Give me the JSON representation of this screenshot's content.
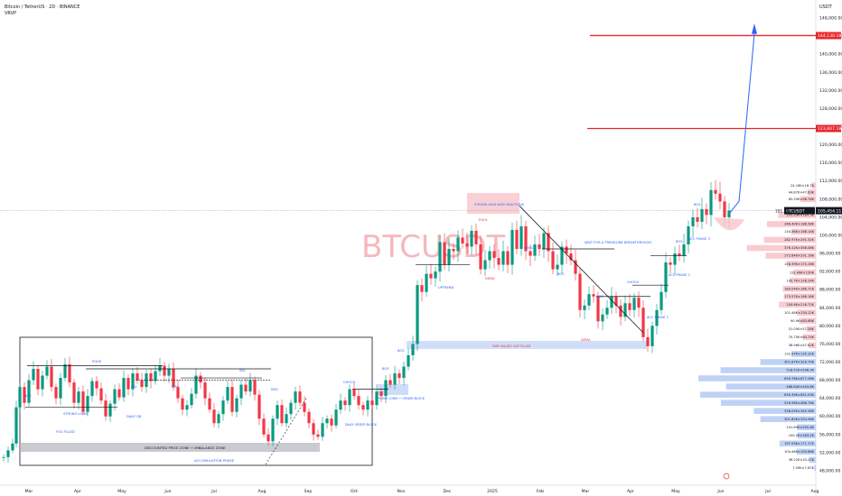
{
  "header": {
    "symbol_line": "Bitcoin / TetherUS · 2D · BINANCE",
    "volume_label": "VRVP"
  },
  "price_axis": {
    "currency": "USDT",
    "ticks": [
      "148,000.00",
      "144,000.00",
      "140,000.00",
      "136,000.00",
      "132,000.00",
      "128,000.00",
      "124,000.00",
      "120,000.00",
      "116,000.00",
      "112,000.00",
      "108,000.00",
      "104,000.00",
      "100,000.00",
      "96,000.00",
      "92,000.00",
      "88,000.00",
      "84,000.00",
      "80,000.00",
      "76,000.00",
      "72,000.00",
      "68,000.00",
      "64,000.00",
      "60,000.00",
      "56,000.00",
      "52,000.00",
      "48,000.00"
    ],
    "tag_target_1": "144,130.18",
    "tag_target_2": "123,607.18",
    "tag_symbol": "BTCUSDT",
    "tag_price": "105,454.11",
    "tag_partial": "101.30"
  },
  "time_axis": {
    "labels": [
      "Mar",
      "Apr",
      "May",
      "Jun",
      "Jul",
      "Aug",
      "Sep",
      "Oct",
      "Nov",
      "Dec",
      "2025",
      "Feb",
      "Mar",
      "Apr",
      "May",
      "Jun",
      "Jul",
      "Aug"
    ]
  },
  "watermark": "BTCUSDT",
  "volume_profile_labels": [
    "24.16K×18.7K",
    "44.87K×47.63K",
    "85.29K×56.76K",
    "205.33K×189.3K",
    "266.40K×188.58K",
    "134.36K×168.14K",
    "282.97K×291.52K",
    "376.12K×358.08K",
    "272.84K×291.16K",
    "158.39K×170.16K",
    "122.49K×150K",
    "142.7K×128.24K",
    "180.04K×166.71K",
    "173.57K×168.18K",
    "200.6K×216.72K",
    "101.48K×134.12K",
    "90.9K×83.68K",
    "51.05K×57.28K",
    "70.75K×64.74K",
    "38.96K×47.82K",
    "132.97K×135.31K",
    "301.87K×329.79K",
    "518.51K×506.9K",
    "639.76K×677.08K",
    "488.84K×443.8K",
    "630.39K×651.03K",
    "516.96K×486.78K",
    "338.05K×349.36K",
    "301.82K×334.96K",
    "101.69K×205.8K",
    "100.2K×183.2K",
    "197.93K×171.27K",
    "104.48K×100.66K",
    "36.22K×33.22K",
    "7.59K×7.87K"
  ],
  "annotations": {
    "strong_high": "STRONG HIGH WICK REACTIONS",
    "wait_trendline": "WAIT FOR A TRENDLINE BREAKTHROUGH",
    "fair_value": "FAIR VALUED GAP FILLED",
    "discount_zone": "DISCOUNTED PRICE ZONE + IMBALANCE ZONE",
    "accumulation": "ACCUMULATION PHASE",
    "fvg_filled": "FVG FILLED",
    "strong_lows": "STRONG LOWS",
    "daily_ob": "DAILY OB",
    "daily_order_block": "DAILY ORDER BLOCK",
    "strong_lows_ob": "STRONG LOWS + ORDER BLOCK",
    "uptrend": "UPTREND",
    "choch": "CHOCH",
    "acc_phase_1": "ACC PHASE 1",
    "acc_phase_2": "ACC PHASE 2",
    "acc_phase_3": "ACC PHASE 3",
    "bos": "BOS",
    "bsl": "BSL",
    "ssl": "SSL",
    "eqh": "EQHS",
    "mss": "MSS",
    "eqhl": "EQHL",
    "dema": "DEMA"
  },
  "colors": {
    "bull": "#089981",
    "bear": "#f23645",
    "target_line": "#e8262e",
    "projection": "#2962ff",
    "zone_blue": "#c8d8f8",
    "zone_red": "#f7c5ca",
    "label_blue": "#2962ff",
    "label_red": "#e53935",
    "vp_red": "#f7c6cc",
    "vp_blue": "#b8cdf5"
  },
  "chart_data": {
    "type": "candlestick",
    "timeframe": "2D",
    "y_range": [
      46000,
      150000
    ],
    "targets": [
      144130.18,
      123607.18
    ],
    "last_price": 105454.11,
    "close_path": [
      [
        0,
        51000
      ],
      [
        5,
        52500
      ],
      [
        10,
        54000
      ],
      [
        14,
        62000
      ],
      [
        18,
        66500
      ],
      [
        23,
        63000
      ],
      [
        28,
        68000
      ],
      [
        33,
        70500
      ],
      [
        38,
        66000
      ],
      [
        43,
        69000
      ],
      [
        48,
        71000
      ],
      [
        53,
        66500
      ],
      [
        58,
        64000
      ],
      [
        63,
        68500
      ],
      [
        68,
        71500
      ],
      [
        73,
        67500
      ],
      [
        78,
        63000
      ],
      [
        83,
        65500
      ],
      [
        88,
        61000
      ],
      [
        93,
        64500
      ],
      [
        98,
        67800
      ],
      [
        103,
        66200
      ],
      [
        108,
        63500
      ],
      [
        113,
        60000
      ],
      [
        118,
        62800
      ],
      [
        123,
        66000
      ],
      [
        128,
        64200
      ],
      [
        133,
        68500
      ],
      [
        138,
        66000
      ],
      [
        143,
        69500
      ],
      [
        148,
        68000
      ],
      [
        153,
        66500
      ],
      [
        158,
        69500
      ],
      [
        163,
        67800
      ],
      [
        168,
        70000
      ],
      [
        173,
        71200
      ],
      [
        178,
        69000
      ],
      [
        183,
        70500
      ],
      [
        188,
        66500
      ],
      [
        193,
        64000
      ],
      [
        198,
        61500
      ],
      [
        203,
        62500
      ],
      [
        208,
        65000
      ],
      [
        213,
        69000
      ],
      [
        218,
        67500
      ],
      [
        223,
        64000
      ],
      [
        228,
        61500
      ],
      [
        233,
        58500
      ],
      [
        238,
        60500
      ],
      [
        243,
        63500
      ],
      [
        248,
        66500
      ],
      [
        253,
        61000
      ],
      [
        258,
        64000
      ],
      [
        263,
        67000
      ],
      [
        268,
        65500
      ],
      [
        273,
        68000
      ],
      [
        278,
        64800
      ],
      [
        283,
        59500
      ],
      [
        288,
        56000
      ],
      [
        293,
        54500
      ],
      [
        298,
        59500
      ],
      [
        303,
        62500
      ],
      [
        308,
        58500
      ],
      [
        313,
        60500
      ],
      [
        318,
        63000
      ],
      [
        323,
        65500
      ],
      [
        328,
        63000
      ],
      [
        333,
        61000
      ],
      [
        338,
        58500
      ],
      [
        343,
        56000
      ],
      [
        348,
        55500
      ],
      [
        353,
        58500
      ],
      [
        358,
        59500
      ],
      [
        363,
        58000
      ],
      [
        368,
        61500
      ],
      [
        373,
        63500
      ],
      [
        378,
        62500
      ],
      [
        383,
        66000
      ],
      [
        388,
        64500
      ],
      [
        393,
        62500
      ],
      [
        398,
        61500
      ],
      [
        403,
        63500
      ],
      [
        408,
        62500
      ],
      [
        413,
        65500
      ],
      [
        418,
        64500
      ],
      [
        423,
        68000
      ],
      [
        428,
        67000
      ],
      [
        433,
        69500
      ],
      [
        438,
        68500
      ],
      [
        443,
        71000
      ],
      [
        448,
        73500
      ],
      [
        453,
        76000
      ],
      [
        458,
        89000
      ],
      [
        463,
        87500
      ],
      [
        468,
        91500
      ],
      [
        473,
        90500
      ],
      [
        478,
        92000
      ],
      [
        483,
        98500
      ],
      [
        488,
        93500
      ],
      [
        493,
        97000
      ],
      [
        498,
        96500
      ],
      [
        503,
        99500
      ],
      [
        508,
        98200
      ],
      [
        513,
        97500
      ],
      [
        518,
        101000
      ],
      [
        523,
        98000
      ],
      [
        528,
        92500
      ],
      [
        533,
        94500
      ],
      [
        538,
        96500
      ],
      [
        543,
        95000
      ],
      [
        548,
        93500
      ],
      [
        553,
        96500
      ],
      [
        558,
        93500
      ],
      [
        563,
        101200
      ],
      [
        568,
        97000
      ],
      [
        573,
        102000
      ],
      [
        578,
        96500
      ],
      [
        583,
        95500
      ],
      [
        588,
        98000
      ],
      [
        593,
        97000
      ],
      [
        598,
        100500
      ],
      [
        603,
        96500
      ],
      [
        608,
        92500
      ],
      [
        613,
        93500
      ],
      [
        618,
        97500
      ],
      [
        623,
        96000
      ],
      [
        628,
        94500
      ],
      [
        633,
        91500
      ],
      [
        638,
        83500
      ],
      [
        643,
        84500
      ],
      [
        648,
        87000
      ],
      [
        653,
        86500
      ],
      [
        658,
        81000
      ],
      [
        663,
        82500
      ],
      [
        668,
        84000
      ],
      [
        673,
        86500
      ],
      [
        678,
        84500
      ],
      [
        683,
        82000
      ],
      [
        688,
        85000
      ],
      [
        693,
        83500
      ],
      [
        698,
        86200
      ],
      [
        703,
        84000
      ],
      [
        708,
        77500
      ],
      [
        713,
        75500
      ],
      [
        718,
        80000
      ],
      [
        723,
        83500
      ],
      [
        728,
        87500
      ],
      [
        733,
        94000
      ],
      [
        738,
        93500
      ],
      [
        743,
        96000
      ],
      [
        748,
        95500
      ],
      [
        753,
        98000
      ],
      [
        758,
        102000
      ],
      [
        763,
        104000
      ],
      [
        768,
        103000
      ],
      [
        773,
        105800
      ],
      [
        778,
        104500
      ],
      [
        783,
        110000
      ],
      [
        788,
        109200
      ],
      [
        793,
        107500
      ],
      [
        798,
        104000
      ],
      [
        803,
        105454
      ]
    ],
    "x_ticks": [
      "Mar",
      "Apr",
      "May",
      "Jun",
      "Jul",
      "Aug",
      "Sep",
      "Oct",
      "Nov",
      "Dec",
      "2025",
      "Feb",
      "Mar",
      "Apr",
      "May",
      "Jun",
      "Jul",
      "Aug"
    ],
    "volume_profile": [
      {
        "price": 111000,
        "vol": 24
      },
      {
        "price": 109500,
        "vol": 45
      },
      {
        "price": 108000,
        "vol": 85
      },
      {
        "price": 104500,
        "vol": 205
      },
      {
        "price": 102500,
        "vol": 266
      },
      {
        "price": 100800,
        "vol": 134
      },
      {
        "price": 99000,
        "vol": 283
      },
      {
        "price": 97200,
        "vol": 376
      },
      {
        "price": 95500,
        "vol": 273
      },
      {
        "price": 93700,
        "vol": 158
      },
      {
        "price": 91800,
        "vol": 122
      },
      {
        "price": 90000,
        "vol": 143
      },
      {
        "price": 88200,
        "vol": 180
      },
      {
        "price": 86500,
        "vol": 174
      },
      {
        "price": 84700,
        "vol": 201
      },
      {
        "price": 82900,
        "vol": 101
      },
      {
        "price": 81100,
        "vol": 91
      },
      {
        "price": 79300,
        "vol": 51
      },
      {
        "price": 77500,
        "vol": 71
      },
      {
        "price": 75700,
        "vol": 39
      },
      {
        "price": 73800,
        "vol": 133
      },
      {
        "price": 72000,
        "vol": 302
      },
      {
        "price": 70200,
        "vol": 519
      },
      {
        "price": 68400,
        "vol": 640
      },
      {
        "price": 66600,
        "vol": 489
      },
      {
        "price": 64800,
        "vol": 630
      },
      {
        "price": 63000,
        "vol": 517
      },
      {
        "price": 61200,
        "vol": 338
      },
      {
        "price": 59400,
        "vol": 302
      },
      {
        "price": 57600,
        "vol": 102
      },
      {
        "price": 55800,
        "vol": 100
      },
      {
        "price": 54000,
        "vol": 198
      },
      {
        "price": 52200,
        "vol": 104
      },
      {
        "price": 50400,
        "vol": 36
      },
      {
        "price": 48600,
        "vol": 8
      }
    ]
  }
}
